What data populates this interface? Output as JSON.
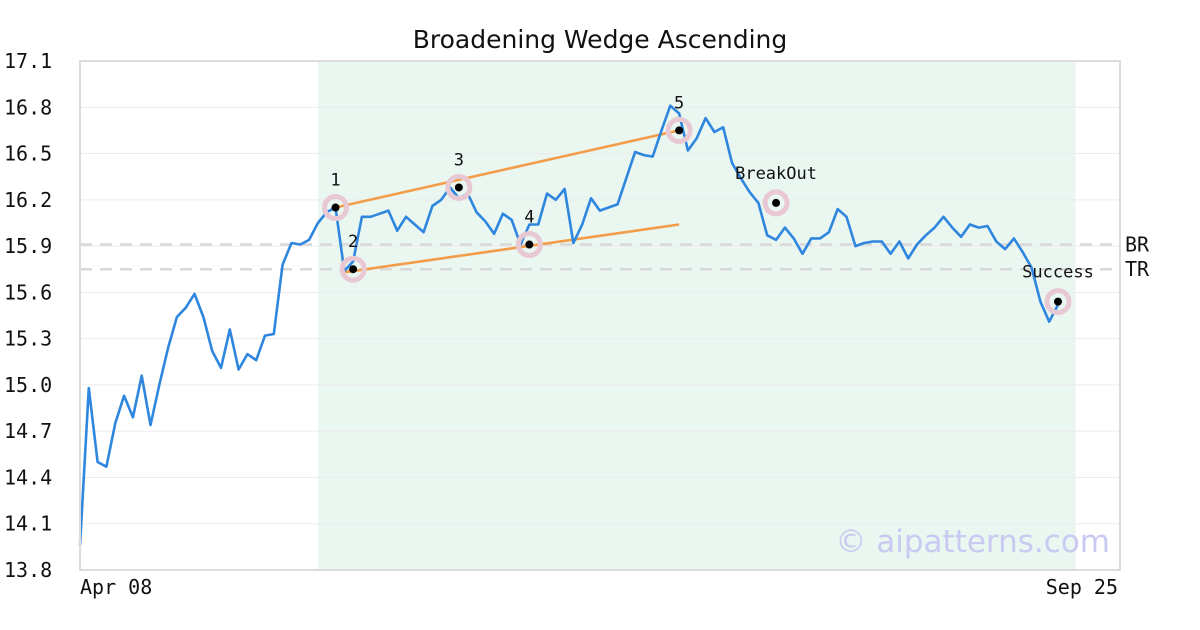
{
  "chart_data": {
    "type": "line",
    "title": "Broadening Wedge Ascending",
    "x_start_label": "Apr 08",
    "x_end_label": "Sep 25",
    "y_ticks": [
      "13.8",
      "14.1",
      "14.4",
      "14.7",
      "15.0",
      "15.3",
      "15.6",
      "15.9",
      "16.2",
      "16.5",
      "16.8",
      "17.1"
    ],
    "ylim": [
      13.8,
      17.1
    ],
    "grid": true,
    "colors": {
      "line": "#2e86de",
      "trend": "#f39c4a",
      "highlight": "#eaf6f0",
      "marker_halo": "#e8c8d3",
      "level": "#d8d8d8",
      "watermark": "#c9c9f2"
    },
    "series": {
      "values": [
        13.96,
        14.98,
        14.5,
        14.47,
        14.75,
        14.93,
        14.79,
        15.06,
        14.74,
        15.0,
        15.24,
        15.44,
        15.5,
        15.59,
        15.44,
        15.22,
        15.11,
        15.36,
        15.1,
        15.2,
        15.16,
        15.32,
        15.33,
        15.78,
        15.92,
        15.91,
        15.94,
        16.05,
        16.12,
        16.15,
        15.74,
        15.8,
        16.09,
        16.09,
        16.11,
        16.13,
        16.0,
        16.09,
        16.04,
        15.99,
        16.16,
        16.2,
        16.28,
        16.21,
        16.24,
        16.12,
        16.06,
        15.98,
        16.11,
        16.07,
        15.91,
        16.04,
        16.04,
        16.24,
        16.2,
        16.27,
        15.92,
        16.04,
        16.21,
        16.13,
        16.15,
        16.17,
        16.34,
        16.51,
        16.49,
        16.48,
        16.65,
        16.81,
        16.76,
        16.52,
        16.6,
        16.73,
        16.64,
        16.67,
        16.44,
        16.34,
        16.25,
        16.18,
        15.97,
        15.94,
        16.02,
        15.95,
        15.85,
        15.95,
        15.95,
        15.99,
        16.14,
        16.09,
        15.9,
        15.92,
        15.93,
        15.93,
        15.85,
        15.93,
        15.82,
        15.91,
        15.97,
        16.02,
        16.09,
        16.02,
        15.96,
        16.04,
        16.02,
        16.03,
        15.93,
        15.88,
        15.95,
        15.86,
        15.76,
        15.54,
        15.41,
        15.52
      ]
    },
    "highlight_range": [
      27,
      113
    ],
    "levels": [
      {
        "label": "BR",
        "value": 15.91
      },
      {
        "label": "TR",
        "value": 15.75
      }
    ],
    "trendlines": [
      {
        "from": [
          29,
          16.15
        ],
        "to": [
          68,
          16.65
        ]
      },
      {
        "from": [
          30,
          15.73
        ],
        "to": [
          68,
          16.04
        ]
      }
    ],
    "points": [
      {
        "label": "1",
        "x": 29,
        "y": 16.15
      },
      {
        "label": "2",
        "x": 31,
        "y": 15.75
      },
      {
        "label": "3",
        "x": 43,
        "y": 16.28
      },
      {
        "label": "4",
        "x": 51,
        "y": 15.91
      },
      {
        "label": "5",
        "x": 68,
        "y": 16.65
      },
      {
        "label": "BreakOut",
        "x": 79,
        "y": 16.18
      },
      {
        "label": "Success",
        "x": 111,
        "y": 15.54
      }
    ],
    "watermark": "© aipatterns.com"
  }
}
